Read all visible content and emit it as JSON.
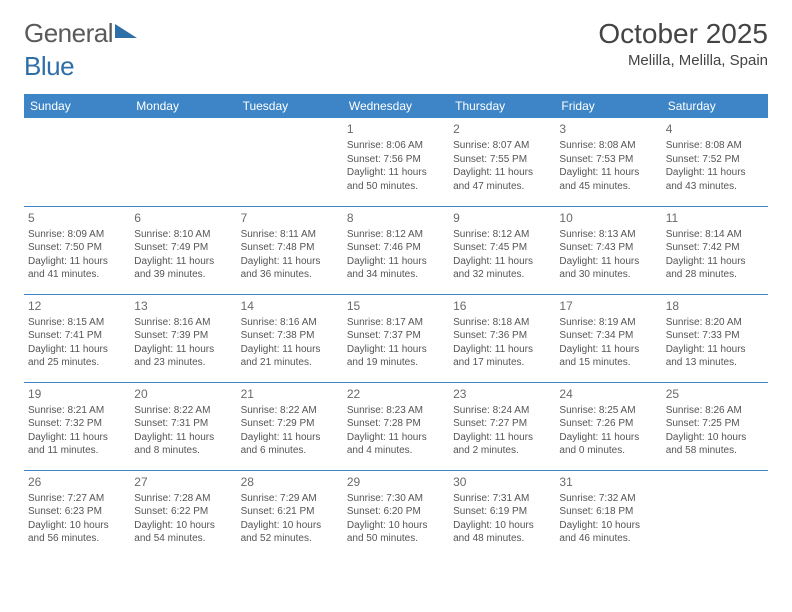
{
  "logo": {
    "word1": "General",
    "word2": "Blue"
  },
  "title": "October 2025",
  "location": "Melilla, Melilla, Spain",
  "colors": {
    "header_bg": "#3d85c6",
    "header_text": "#ffffff",
    "row_border": "#3d85c6",
    "text": "#555555",
    "daynum": "#6a6a6a"
  },
  "days_of_week": [
    "Sunday",
    "Monday",
    "Tuesday",
    "Wednesday",
    "Thursday",
    "Friday",
    "Saturday"
  ],
  "weeks": [
    [
      null,
      null,
      null,
      {
        "n": "1",
        "sunrise": "Sunrise: 8:06 AM",
        "sunset": "Sunset: 7:56 PM",
        "day1": "Daylight: 11 hours",
        "day2": "and 50 minutes."
      },
      {
        "n": "2",
        "sunrise": "Sunrise: 8:07 AM",
        "sunset": "Sunset: 7:55 PM",
        "day1": "Daylight: 11 hours",
        "day2": "and 47 minutes."
      },
      {
        "n": "3",
        "sunrise": "Sunrise: 8:08 AM",
        "sunset": "Sunset: 7:53 PM",
        "day1": "Daylight: 11 hours",
        "day2": "and 45 minutes."
      },
      {
        "n": "4",
        "sunrise": "Sunrise: 8:08 AM",
        "sunset": "Sunset: 7:52 PM",
        "day1": "Daylight: 11 hours",
        "day2": "and 43 minutes."
      }
    ],
    [
      {
        "n": "5",
        "sunrise": "Sunrise: 8:09 AM",
        "sunset": "Sunset: 7:50 PM",
        "day1": "Daylight: 11 hours",
        "day2": "and 41 minutes."
      },
      {
        "n": "6",
        "sunrise": "Sunrise: 8:10 AM",
        "sunset": "Sunset: 7:49 PM",
        "day1": "Daylight: 11 hours",
        "day2": "and 39 minutes."
      },
      {
        "n": "7",
        "sunrise": "Sunrise: 8:11 AM",
        "sunset": "Sunset: 7:48 PM",
        "day1": "Daylight: 11 hours",
        "day2": "and 36 minutes."
      },
      {
        "n": "8",
        "sunrise": "Sunrise: 8:12 AM",
        "sunset": "Sunset: 7:46 PM",
        "day1": "Daylight: 11 hours",
        "day2": "and 34 minutes."
      },
      {
        "n": "9",
        "sunrise": "Sunrise: 8:12 AM",
        "sunset": "Sunset: 7:45 PM",
        "day1": "Daylight: 11 hours",
        "day2": "and 32 minutes."
      },
      {
        "n": "10",
        "sunrise": "Sunrise: 8:13 AM",
        "sunset": "Sunset: 7:43 PM",
        "day1": "Daylight: 11 hours",
        "day2": "and 30 minutes."
      },
      {
        "n": "11",
        "sunrise": "Sunrise: 8:14 AM",
        "sunset": "Sunset: 7:42 PM",
        "day1": "Daylight: 11 hours",
        "day2": "and 28 minutes."
      }
    ],
    [
      {
        "n": "12",
        "sunrise": "Sunrise: 8:15 AM",
        "sunset": "Sunset: 7:41 PM",
        "day1": "Daylight: 11 hours",
        "day2": "and 25 minutes."
      },
      {
        "n": "13",
        "sunrise": "Sunrise: 8:16 AM",
        "sunset": "Sunset: 7:39 PM",
        "day1": "Daylight: 11 hours",
        "day2": "and 23 minutes."
      },
      {
        "n": "14",
        "sunrise": "Sunrise: 8:16 AM",
        "sunset": "Sunset: 7:38 PM",
        "day1": "Daylight: 11 hours",
        "day2": "and 21 minutes."
      },
      {
        "n": "15",
        "sunrise": "Sunrise: 8:17 AM",
        "sunset": "Sunset: 7:37 PM",
        "day1": "Daylight: 11 hours",
        "day2": "and 19 minutes."
      },
      {
        "n": "16",
        "sunrise": "Sunrise: 8:18 AM",
        "sunset": "Sunset: 7:36 PM",
        "day1": "Daylight: 11 hours",
        "day2": "and 17 minutes."
      },
      {
        "n": "17",
        "sunrise": "Sunrise: 8:19 AM",
        "sunset": "Sunset: 7:34 PM",
        "day1": "Daylight: 11 hours",
        "day2": "and 15 minutes."
      },
      {
        "n": "18",
        "sunrise": "Sunrise: 8:20 AM",
        "sunset": "Sunset: 7:33 PM",
        "day1": "Daylight: 11 hours",
        "day2": "and 13 minutes."
      }
    ],
    [
      {
        "n": "19",
        "sunrise": "Sunrise: 8:21 AM",
        "sunset": "Sunset: 7:32 PM",
        "day1": "Daylight: 11 hours",
        "day2": "and 11 minutes."
      },
      {
        "n": "20",
        "sunrise": "Sunrise: 8:22 AM",
        "sunset": "Sunset: 7:31 PM",
        "day1": "Daylight: 11 hours",
        "day2": "and 8 minutes."
      },
      {
        "n": "21",
        "sunrise": "Sunrise: 8:22 AM",
        "sunset": "Sunset: 7:29 PM",
        "day1": "Daylight: 11 hours",
        "day2": "and 6 minutes."
      },
      {
        "n": "22",
        "sunrise": "Sunrise: 8:23 AM",
        "sunset": "Sunset: 7:28 PM",
        "day1": "Daylight: 11 hours",
        "day2": "and 4 minutes."
      },
      {
        "n": "23",
        "sunrise": "Sunrise: 8:24 AM",
        "sunset": "Sunset: 7:27 PM",
        "day1": "Daylight: 11 hours",
        "day2": "and 2 minutes."
      },
      {
        "n": "24",
        "sunrise": "Sunrise: 8:25 AM",
        "sunset": "Sunset: 7:26 PM",
        "day1": "Daylight: 11 hours",
        "day2": "and 0 minutes."
      },
      {
        "n": "25",
        "sunrise": "Sunrise: 8:26 AM",
        "sunset": "Sunset: 7:25 PM",
        "day1": "Daylight: 10 hours",
        "day2": "and 58 minutes."
      }
    ],
    [
      {
        "n": "26",
        "sunrise": "Sunrise: 7:27 AM",
        "sunset": "Sunset: 6:23 PM",
        "day1": "Daylight: 10 hours",
        "day2": "and 56 minutes."
      },
      {
        "n": "27",
        "sunrise": "Sunrise: 7:28 AM",
        "sunset": "Sunset: 6:22 PM",
        "day1": "Daylight: 10 hours",
        "day2": "and 54 minutes."
      },
      {
        "n": "28",
        "sunrise": "Sunrise: 7:29 AM",
        "sunset": "Sunset: 6:21 PM",
        "day1": "Daylight: 10 hours",
        "day2": "and 52 minutes."
      },
      {
        "n": "29",
        "sunrise": "Sunrise: 7:30 AM",
        "sunset": "Sunset: 6:20 PM",
        "day1": "Daylight: 10 hours",
        "day2": "and 50 minutes."
      },
      {
        "n": "30",
        "sunrise": "Sunrise: 7:31 AM",
        "sunset": "Sunset: 6:19 PM",
        "day1": "Daylight: 10 hours",
        "day2": "and 48 minutes."
      },
      {
        "n": "31",
        "sunrise": "Sunrise: 7:32 AM",
        "sunset": "Sunset: 6:18 PM",
        "day1": "Daylight: 10 hours",
        "day2": "and 46 minutes."
      },
      null
    ]
  ]
}
